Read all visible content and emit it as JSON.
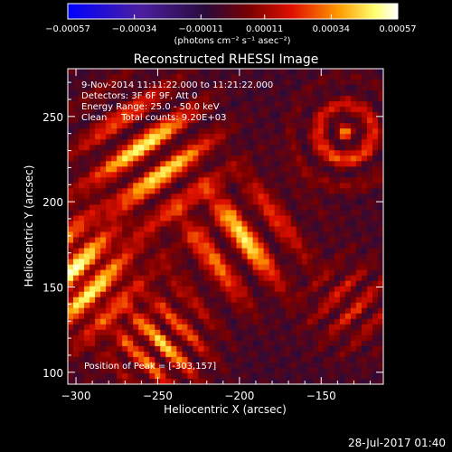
{
  "chart_data": {
    "type": "heatmap",
    "title": "Reconstructed RHESSI Image",
    "xlabel": "Heliocentric X (arcsec)",
    "ylabel": "Heliocentric Y (arcsec)",
    "xlim": [
      -305,
      -112
    ],
    "ylim": [
      93,
      278
    ],
    "x_ticks": [
      -300,
      -250,
      -200,
      -150
    ],
    "x_tick_labels": [
      "−300",
      "−250",
      "−200",
      "−150"
    ],
    "y_ticks": [
      100,
      150,
      200,
      250
    ],
    "y_tick_labels": [
      "100",
      "150",
      "200",
      "250"
    ],
    "colorbar": {
      "range": [
        -0.00057,
        0.00057
      ],
      "ticks": [
        -0.00057,
        -0.00034,
        -0.00011,
        0.00011,
        0.00034,
        0.00057
      ],
      "tick_labels": [
        "−0.00057",
        "−0.00034",
        "−0.00011",
        "0.00011",
        "0.00034",
        "0.00057"
      ],
      "unit_label": "(photons cm⁻² s⁻¹ asec⁻²)",
      "colors": [
        "#0000ff",
        "#4b1fa0",
        "#2a0a3a",
        "#7a0000",
        "#e01000",
        "#ff9a00",
        "#ffff70",
        "#ffffff"
      ]
    },
    "annotations": [
      "9-Nov-2014 11:11:22.000 to 11:21:22.000",
      "Detectors: 3F 6F 9F, Att 0",
      "Energy Range: 25.0 - 50.0 keV",
      "Clean     Total counts: 9.20E+03",
      "Position of Peak = [-303,157]"
    ],
    "peak": {
      "x": -303,
      "y": 157
    },
    "grid": false
  },
  "footer": {
    "timestamp": "28-Jul-2017 01:40"
  }
}
